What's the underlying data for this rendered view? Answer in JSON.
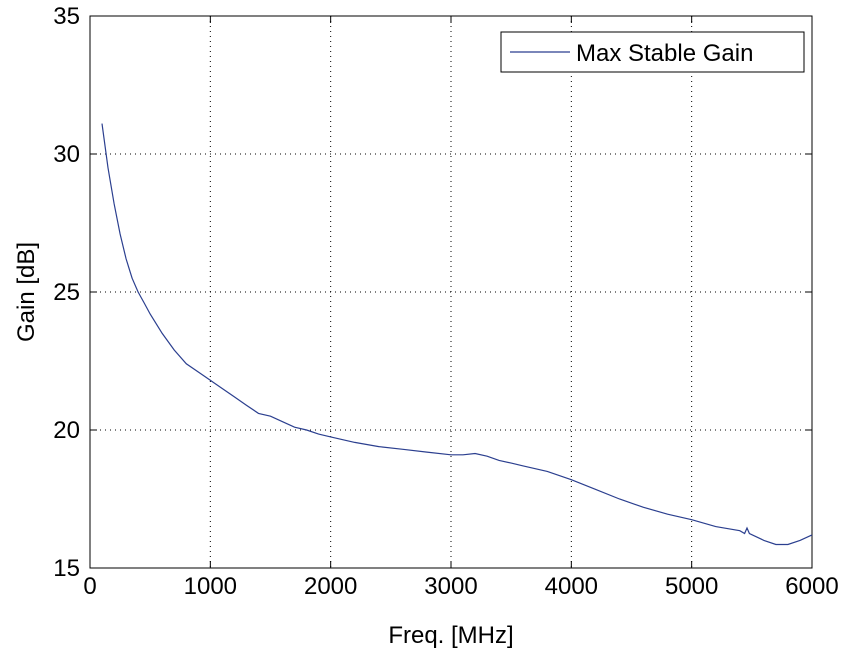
{
  "chart_data": {
    "type": "line",
    "title": "",
    "xlabel": "Freq. [MHz]",
    "ylabel": "Gain [dB]",
    "xlim": [
      0,
      6000
    ],
    "ylim": [
      15,
      35
    ],
    "xticks": [
      0,
      1000,
      2000,
      3000,
      4000,
      5000,
      6000
    ],
    "xtick_labels": [
      "0",
      "1000",
      "2000",
      "3000",
      "4000",
      "5000",
      "6000"
    ],
    "yticks": [
      15,
      20,
      25,
      30,
      35
    ],
    "ytick_labels": [
      "15",
      "20",
      "25",
      "30",
      "35"
    ],
    "grid": true,
    "legend_position": "top-right",
    "series": [
      {
        "name": "Max Stable Gain",
        "color": "#2b3f8f",
        "x": [
          100,
          150,
          200,
          250,
          300,
          350,
          400,
          450,
          500,
          600,
          700,
          800,
          900,
          1000,
          1100,
          1200,
          1300,
          1400,
          1500,
          1600,
          1700,
          1800,
          1900,
          2000,
          2200,
          2400,
          2600,
          2800,
          3000,
          3100,
          3200,
          3300,
          3400,
          3500,
          3600,
          3800,
          4000,
          4200,
          4400,
          4600,
          4800,
          5000,
          5200,
          5400,
          5440,
          5460,
          5480,
          5600,
          5700,
          5800,
          5900,
          6000
        ],
        "y": [
          31.1,
          29.5,
          28.2,
          27.1,
          26.2,
          25.5,
          25.0,
          24.6,
          24.2,
          23.5,
          22.9,
          22.4,
          22.1,
          21.8,
          21.5,
          21.2,
          20.9,
          20.6,
          20.5,
          20.3,
          20.1,
          20.0,
          19.85,
          19.75,
          19.55,
          19.4,
          19.3,
          19.2,
          19.1,
          19.1,
          19.15,
          19.05,
          18.9,
          18.8,
          18.7,
          18.5,
          18.2,
          17.85,
          17.5,
          17.2,
          16.95,
          16.75,
          16.5,
          16.35,
          16.25,
          16.45,
          16.25,
          16.0,
          15.85,
          15.85,
          16.0,
          16.2
        ]
      }
    ]
  }
}
